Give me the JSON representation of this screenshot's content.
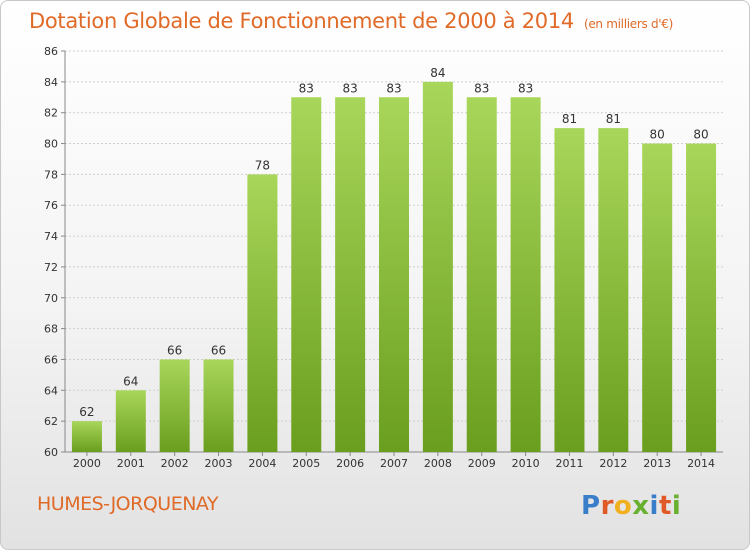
{
  "header": {
    "title": "Dotation Globale de Fonctionnement de 2000 à 2014",
    "subtitle": "(en milliers d'€)"
  },
  "footer": {
    "commune": "HUMES-JORQUENAY",
    "logo": "Proxiti"
  },
  "logo_letters": [
    {
      "ch": "P",
      "color": "#3a7dc8"
    },
    {
      "ch": "r",
      "color": "#e05a28"
    },
    {
      "ch": "o",
      "color": "#f0b020"
    },
    {
      "ch": "x",
      "color": "#6ab030"
    },
    {
      "ch": "i",
      "color": "#3a7dc8"
    },
    {
      "ch": "t",
      "color": "#e05a28"
    },
    {
      "ch": "i",
      "color": "#6ab030"
    }
  ],
  "colors": {
    "accent": "#e06a28",
    "bar_light": "#a8d65a",
    "bar_dark": "#6a9e1e"
  },
  "chart_data": {
    "type": "bar",
    "categories": [
      "2000",
      "2001",
      "2002",
      "2003",
      "2004",
      "2005",
      "2006",
      "2007",
      "2008",
      "2009",
      "2010",
      "2011",
      "2012",
      "2013",
      "2014"
    ],
    "values": [
      62,
      64,
      66,
      66,
      78,
      83,
      83,
      83,
      84,
      83,
      83,
      81,
      81,
      80,
      80
    ],
    "title": "Dotation Globale de Fonctionnement de 2000 à 2014",
    "subtitle": "(en milliers d'€)",
    "xlabel": "",
    "ylabel": "",
    "ylim": [
      60,
      86
    ],
    "yticks": [
      60,
      62,
      64,
      66,
      68,
      70,
      72,
      74,
      76,
      78,
      80,
      82,
      84,
      86
    ],
    "grid": true,
    "legend": "none"
  }
}
